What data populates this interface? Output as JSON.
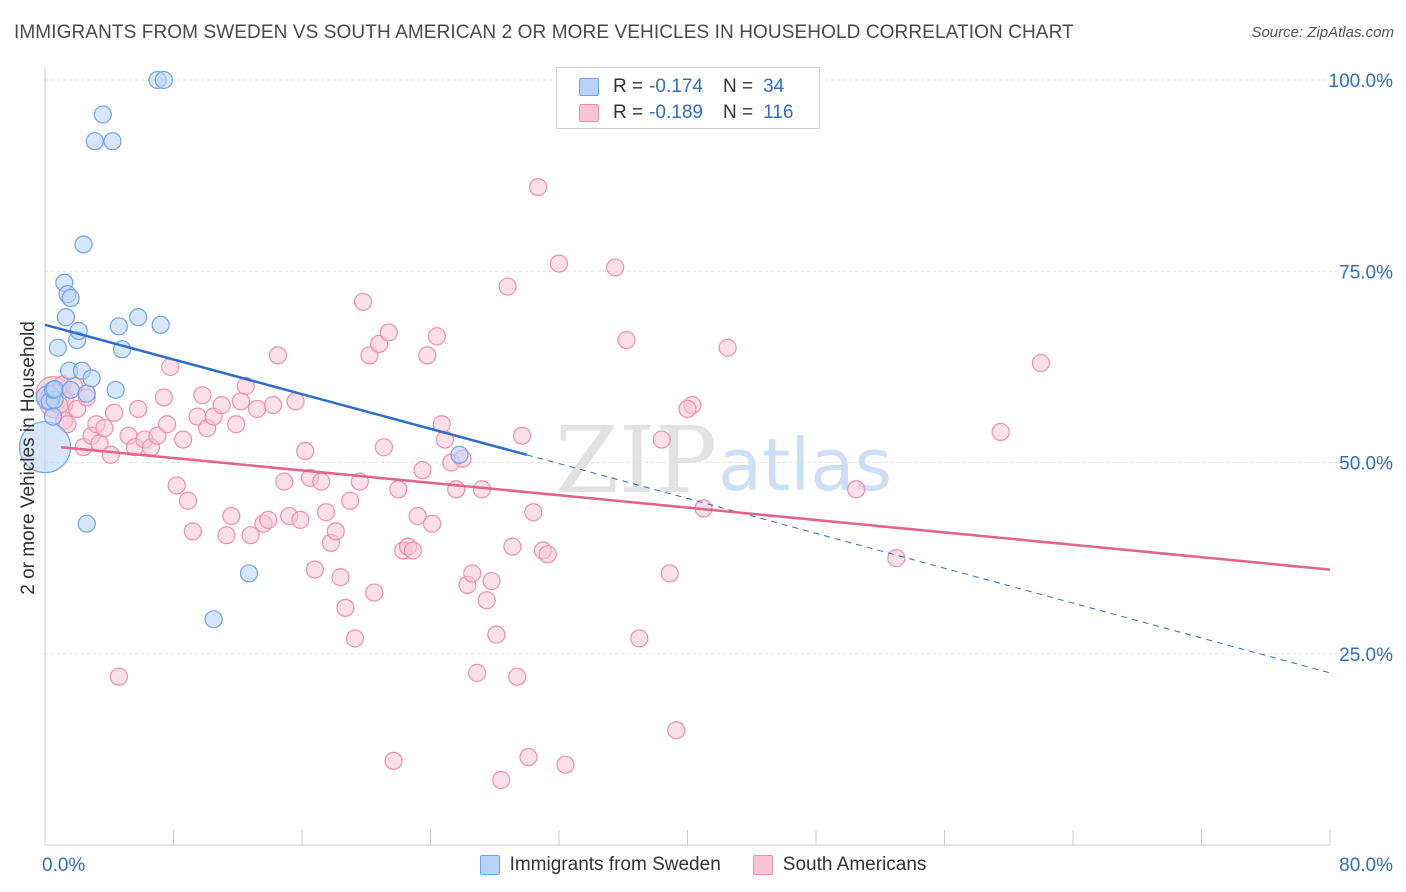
{
  "title": "IMMIGRANTS FROM SWEDEN VS SOUTH AMERICAN 2 OR MORE VEHICLES IN HOUSEHOLD CORRELATION CHART",
  "source": "Source: ZipAtlas.com",
  "watermark": {
    "zip": "ZIP",
    "atlas": "atlas"
  },
  "legend": {
    "rows": [
      {
        "r_label": "R =",
        "r_value": "-0.174",
        "n_label": "N =",
        "n_value": "34",
        "color": "#6fa3e8",
        "fill": "#b7d2f5"
      },
      {
        "r_label": "R =",
        "r_value": "-0.189",
        "n_label": "N =",
        "n_value": "116",
        "color": "#f08db0",
        "fill": "#f9c5d6"
      }
    ]
  },
  "bottom_legend": {
    "items": [
      {
        "label": "Immigrants from Sweden",
        "fill": "#b7d2f5",
        "stroke": "#6fa3e8"
      },
      {
        "label": "South Americans",
        "fill": "#f9c5d6",
        "stroke": "#f08db0"
      }
    ]
  },
  "chart_data": {
    "type": "scatter",
    "title": "IMMIGRANTS FROM SWEDEN VS SOUTH AMERICAN 2 OR MORE VEHICLES IN HOUSEHOLD CORRELATION CHART",
    "xlabel": "",
    "ylabel": "2 or more Vehicles in Household",
    "xlim": [
      0,
      80
    ],
    "ylim": [
      0,
      100
    ],
    "x_tick_labels": [
      {
        "value": 0,
        "label": "0.0%"
      },
      {
        "value": 80,
        "label": "80.0%"
      }
    ],
    "y_tick_labels": [
      {
        "value": 100,
        "label": "100.0%"
      },
      {
        "value": 75,
        "label": "75.0%"
      },
      {
        "value": 50,
        "label": "50.0%"
      },
      {
        "value": 25,
        "label": "25.0%"
      }
    ],
    "colors": {
      "blue": "#6fa3e8",
      "blue_line": "#2f6dc8",
      "pink": "#f08db0",
      "pink_line": "#e0648f",
      "tick_label": "#2f6dc8",
      "grid": "#e3e3e3"
    },
    "series": [
      {
        "name": "Immigrants from Sweden",
        "color": "#6fa3e8",
        "trend": {
          "x0": 0,
          "y0": 68,
          "x1": 30,
          "y1": 51,
          "dash_to_x": 80,
          "dash_to_y": 22.5
        },
        "points": [
          [
            0,
            52,
            3
          ],
          [
            0.2,
            58.5,
            1.4
          ],
          [
            0.3,
            58.0,
            1
          ],
          [
            0.5,
            56,
            1
          ],
          [
            0.6,
            58.2,
            1
          ],
          [
            0.5,
            59.5,
            1
          ],
          [
            0.6,
            59.6,
            1
          ],
          [
            0.8,
            65,
            1
          ],
          [
            1.2,
            73.5,
            1
          ],
          [
            1.3,
            69,
            1
          ],
          [
            1.4,
            72,
            1
          ],
          [
            1.6,
            71.5,
            1
          ],
          [
            1.5,
            62,
            1
          ],
          [
            1.6,
            59.5,
            1
          ],
          [
            2.0,
            66,
            1
          ],
          [
            2.1,
            67.2,
            1
          ],
          [
            2.3,
            62,
            1
          ],
          [
            2.4,
            78.5,
            1
          ],
          [
            2.6,
            59,
            1
          ],
          [
            2.9,
            61,
            1
          ],
          [
            3.1,
            92,
            1
          ],
          [
            3.6,
            95.5,
            1
          ],
          [
            4.2,
            92,
            1
          ],
          [
            4.4,
            59.5,
            1
          ],
          [
            4.6,
            67.8,
            1
          ],
          [
            4.8,
            64.8,
            1
          ],
          [
            5.8,
            69,
            1
          ],
          [
            7.0,
            100,
            1
          ],
          [
            7.4,
            100,
            1
          ],
          [
            7.2,
            68,
            1
          ],
          [
            2.6,
            42,
            1
          ],
          [
            10.5,
            29.5,
            1
          ],
          [
            12.7,
            35.5,
            1
          ],
          [
            25.8,
            51,
            1
          ]
        ]
      },
      {
        "name": "South Americans",
        "color": "#f08db0",
        "trend": {
          "x0": 1,
          "y0": 52,
          "x1": 80,
          "y1": 36
        },
        "points": [
          [
            0.5,
            59,
            2
          ],
          [
            0.7,
            58,
            2
          ],
          [
            0.9,
            57.5,
            1
          ],
          [
            1.1,
            60.2,
            1
          ],
          [
            1.2,
            55.5,
            1
          ],
          [
            1.4,
            55,
            1
          ],
          [
            1.8,
            60,
            1
          ],
          [
            2.0,
            57,
            1
          ],
          [
            2.4,
            52,
            1
          ],
          [
            2.6,
            58.5,
            1
          ],
          [
            2.9,
            53.5,
            1
          ],
          [
            3.2,
            55,
            1
          ],
          [
            3.4,
            52.5,
            1
          ],
          [
            3.7,
            54.5,
            1
          ],
          [
            4.1,
            51,
            1
          ],
          [
            4.3,
            56.5,
            1
          ],
          [
            4.6,
            22,
            1
          ],
          [
            5.2,
            53.5,
            1
          ],
          [
            5.6,
            52,
            1
          ],
          [
            5.8,
            57,
            1
          ],
          [
            6.2,
            53,
            1
          ],
          [
            6.6,
            52,
            1
          ],
          [
            7.0,
            53.5,
            1
          ],
          [
            7.4,
            58.5,
            1
          ],
          [
            7.6,
            55,
            1
          ],
          [
            7.8,
            62.5,
            1
          ],
          [
            8.2,
            47,
            1
          ],
          [
            8.6,
            53,
            1
          ],
          [
            8.9,
            45,
            1
          ],
          [
            9.2,
            41,
            1
          ],
          [
            9.5,
            56,
            1
          ],
          [
            9.8,
            58.8,
            1
          ],
          [
            10.1,
            54.5,
            1
          ],
          [
            10.5,
            56,
            1
          ],
          [
            11.0,
            57.5,
            1
          ],
          [
            11.3,
            40.5,
            1
          ],
          [
            11.6,
            43,
            1
          ],
          [
            11.9,
            55,
            1
          ],
          [
            12.2,
            58,
            1
          ],
          [
            12.5,
            60,
            1
          ],
          [
            12.8,
            40.5,
            1
          ],
          [
            13.2,
            57,
            1
          ],
          [
            13.6,
            42,
            1
          ],
          [
            13.9,
            42.5,
            1
          ],
          [
            14.2,
            57.5,
            1
          ],
          [
            14.5,
            64,
            1
          ],
          [
            14.9,
            47.5,
            1
          ],
          [
            15.2,
            43,
            1
          ],
          [
            15.6,
            58,
            1
          ],
          [
            15.9,
            42.5,
            1
          ],
          [
            16.2,
            51.5,
            1
          ],
          [
            16.5,
            48,
            1
          ],
          [
            16.8,
            36,
            1
          ],
          [
            17.2,
            47.5,
            1
          ],
          [
            17.5,
            43.5,
            1
          ],
          [
            17.8,
            39.5,
            1
          ],
          [
            18.1,
            41,
            1
          ],
          [
            18.4,
            35,
            1
          ],
          [
            18.7,
            31,
            1
          ],
          [
            19.0,
            45,
            1
          ],
          [
            19.3,
            27,
            1
          ],
          [
            19.6,
            47.5,
            1
          ],
          [
            19.8,
            71,
            1
          ],
          [
            20.2,
            64,
            1
          ],
          [
            20.5,
            33,
            1
          ],
          [
            20.8,
            65.5,
            1
          ],
          [
            21.1,
            52,
            1
          ],
          [
            21.4,
            67,
            1
          ],
          [
            21.7,
            11,
            1
          ],
          [
            22.0,
            46.5,
            1
          ],
          [
            22.3,
            38.5,
            1
          ],
          [
            22.6,
            39,
            1
          ],
          [
            22.9,
            38.5,
            1
          ],
          [
            23.2,
            43,
            1
          ],
          [
            23.5,
            49,
            1
          ],
          [
            23.8,
            64,
            1
          ],
          [
            24.1,
            42,
            1
          ],
          [
            24.4,
            66.5,
            1
          ],
          [
            24.7,
            55,
            1
          ],
          [
            24.9,
            53,
            1
          ],
          [
            25.3,
            50,
            1
          ],
          [
            25.6,
            46.5,
            1
          ],
          [
            26.0,
            50.5,
            1
          ],
          [
            26.3,
            34,
            1
          ],
          [
            26.6,
            35.5,
            1
          ],
          [
            26.9,
            22.5,
            1
          ],
          [
            27.2,
            46.5,
            1
          ],
          [
            27.5,
            32,
            1
          ],
          [
            27.8,
            34.5,
            1
          ],
          [
            28.1,
            27.5,
            1
          ],
          [
            28.4,
            8.5,
            1
          ],
          [
            28.8,
            73,
            1
          ],
          [
            29.1,
            39,
            1
          ],
          [
            29.4,
            22,
            1
          ],
          [
            29.7,
            53.5,
            1
          ],
          [
            30.1,
            11.5,
            1
          ],
          [
            30.4,
            43.5,
            1
          ],
          [
            30.7,
            86,
            1
          ],
          [
            31.0,
            38.5,
            1
          ],
          [
            31.3,
            38,
            1
          ],
          [
            32.0,
            76,
            1
          ],
          [
            32.4,
            10.5,
            1
          ],
          [
            35.5,
            75.5,
            1
          ],
          [
            36.2,
            66,
            1
          ],
          [
            37.0,
            27,
            1
          ],
          [
            38.4,
            53,
            1
          ],
          [
            38.9,
            35.5,
            1
          ],
          [
            39.3,
            15,
            1
          ],
          [
            40.3,
            57.5,
            1
          ],
          [
            41.0,
            44,
            1
          ],
          [
            42.5,
            65,
            1
          ],
          [
            50.5,
            46.5,
            1
          ],
          [
            53.0,
            37.5,
            1
          ],
          [
            59.5,
            54,
            1
          ],
          [
            62.0,
            63,
            1
          ],
          [
            40.0,
            57,
            1
          ]
        ]
      }
    ]
  }
}
